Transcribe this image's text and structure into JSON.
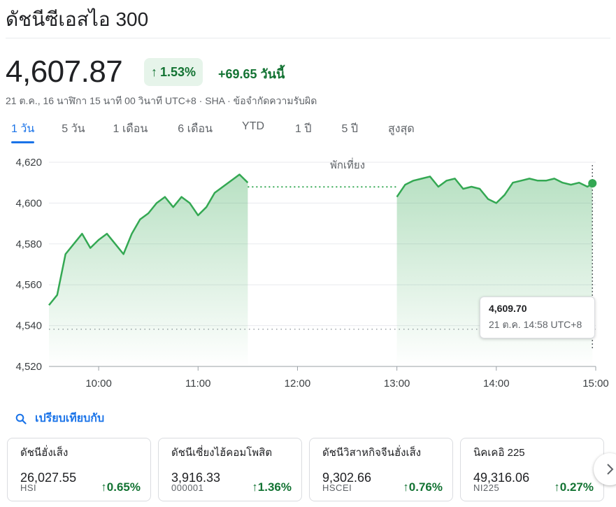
{
  "title": "ดัชนีซีเอสไอ 300",
  "quote": {
    "price": "4,607.87",
    "change_pct": "1.53%",
    "change_abs": "+69.65 วันนี้",
    "meta": "21 ต.ค., 16 นาฬิกา 15 นาที 00 วินาที UTC+8 · SHA · ข้อจำกัดความรับผิด"
  },
  "tabs": [
    "1 วัน",
    "5 วัน",
    "1 เดือน",
    "6 เดือน",
    "YTD",
    "1 ปี",
    "5 ปี",
    "สูงสุด"
  ],
  "active_tab": 0,
  "tooltip": {
    "value": "4,609.70",
    "time": "21 ต.ค. 14:58 UTC+8"
  },
  "compare_label": "เปรียบเทียบกับ",
  "colors": {
    "up": "#137333",
    "line": "#34a853",
    "accent": "#1a73e8"
  },
  "chart_data": {
    "type": "line",
    "annotation": "พักเที่ยง",
    "y_ticks": [
      "4,620",
      "4,600",
      "4,580",
      "4,560",
      "4,540",
      "4,520"
    ],
    "x_ticks": [
      "10:00",
      "11:00",
      "12:00",
      "13:00",
      "14:00",
      "15:00"
    ],
    "ylim": [
      4520,
      4620
    ],
    "previous_close": 4538.22,
    "lunch_break": [
      "11:30",
      "13:00"
    ],
    "x": [
      "09:30",
      "09:35",
      "09:40",
      "09:45",
      "09:50",
      "09:55",
      "10:00",
      "10:05",
      "10:10",
      "10:15",
      "10:20",
      "10:25",
      "10:30",
      "10:35",
      "10:40",
      "10:45",
      "10:50",
      "10:55",
      "11:00",
      "11:05",
      "11:10",
      "11:15",
      "11:20",
      "11:25",
      "11:30",
      "13:00",
      "13:05",
      "13:10",
      "13:15",
      "13:20",
      "13:25",
      "13:30",
      "13:35",
      "13:40",
      "13:45",
      "13:50",
      "13:55",
      "14:00",
      "14:05",
      "14:10",
      "14:15",
      "14:20",
      "14:25",
      "14:30",
      "14:35",
      "14:40",
      "14:45",
      "14:50",
      "14:55",
      "14:58"
    ],
    "values": [
      4550,
      4555,
      4575,
      4580,
      4585,
      4578,
      4582,
      4585,
      4580,
      4575,
      4585,
      4592,
      4595,
      4600,
      4603,
      4598,
      4603,
      4600,
      4594,
      4598,
      4605,
      4608,
      4611,
      4614,
      4610,
      4603,
      4609,
      4611,
      4612,
      4613,
      4608,
      4611,
      4612,
      4607,
      4608,
      4607,
      4602,
      4600,
      4604,
      4610,
      4611,
      4612,
      4611,
      4611,
      4612,
      4610,
      4609,
      4610,
      4608,
      4609.7
    ]
  },
  "related": [
    {
      "name": "ดัชนีฮั่งเส็ง",
      "value": "26,027.55",
      "code": "HSI",
      "pct": "0.65%"
    },
    {
      "name": "ดัชนีเซี่ยงไฮ้คอมโพสิต",
      "value": "3,916.33",
      "code": "000001",
      "pct": "1.36%"
    },
    {
      "name": "ดัชนีวิสาหกิจจีนฮั่งเส็ง",
      "value": "9,302.66",
      "code": "HSCEI",
      "pct": "0.76%"
    },
    {
      "name": "นิคเคอิ 225",
      "value": "49,316.06",
      "code": "NI225",
      "pct": "0.27%"
    }
  ]
}
